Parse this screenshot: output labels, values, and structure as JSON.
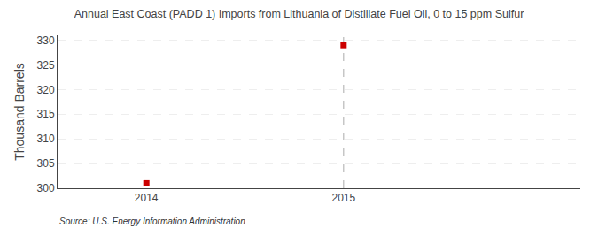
{
  "chart_data": {
    "type": "scatter",
    "title": "Annual East Coast (PADD 1) Imports from Lithuania of Distillate Fuel Oil, 0 to 15 ppm Sulfur",
    "ylabel": "Thousand Barrels",
    "source": "Source: U.S. Energy Information Administration",
    "x": [
      2014,
      2015
    ],
    "values": [
      301,
      329
    ],
    "color": "#cc0000",
    "marker": "square",
    "xlim": [
      2013.55,
      2016.2
    ],
    "xticks": [
      2014,
      2015
    ],
    "ylim": [
      300,
      331
    ],
    "yticks": [
      300,
      305,
      310,
      315,
      320,
      325,
      330
    ],
    "grid": true,
    "vlines": [
      2015
    ]
  }
}
